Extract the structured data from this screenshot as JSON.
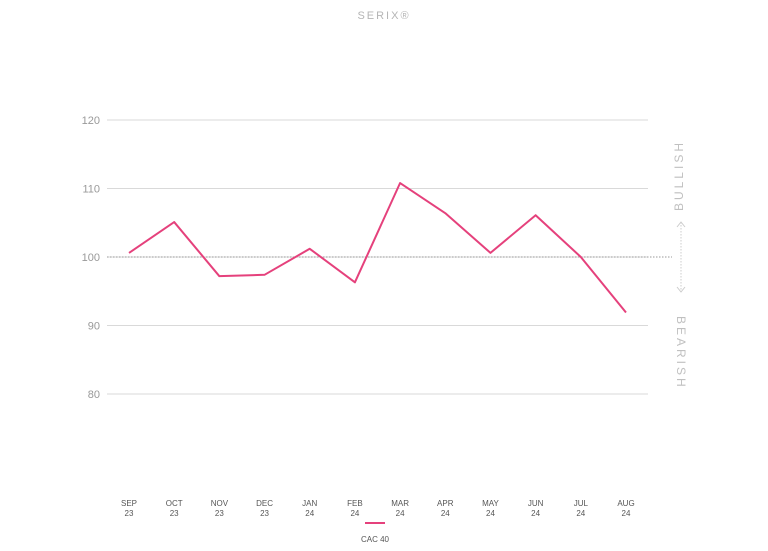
{
  "chart_data": {
    "type": "line",
    "title": "SERIX®",
    "categories": [
      "SEP 23",
      "OCT 23",
      "NOV 23",
      "DEC 23",
      "JAN 24",
      "FEB 24",
      "MAR 24",
      "APR 24",
      "MAY 24",
      "JUN 24",
      "JUL 24",
      "AUG 24"
    ],
    "series": [
      {
        "name": "CAC 40",
        "color": "#e5417c",
        "values": [
          100.6,
          105.1,
          97.2,
          97.4,
          101.2,
          96.3,
          110.8,
          106.4,
          100.6,
          106.1,
          100.0,
          91.9
        ]
      }
    ],
    "ylim": [
      80,
      120
    ],
    "yticks": [
      80,
      90,
      100,
      110,
      120
    ],
    "reference_line": 100,
    "grid": true,
    "legend": "bottom",
    "zone_labels": {
      "upper": "BULLISH",
      "lower": "BEARISH"
    }
  }
}
